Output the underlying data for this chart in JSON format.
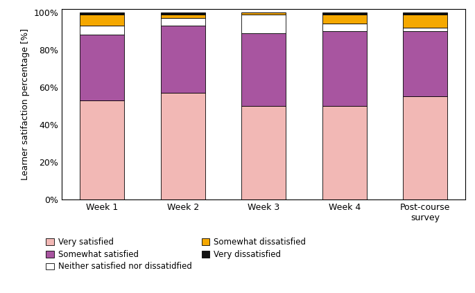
{
  "categories": [
    "Week 1",
    "Week 2",
    "Week 3",
    "Week 4",
    "Post-course\nsurvey"
  ],
  "series": {
    "Very satisfied": [
      53,
      57,
      50,
      50,
      55
    ],
    "Somewhat satisfied": [
      35,
      36,
      39,
      40,
      35
    ],
    "Neither satisfied nor dissatidfied": [
      5,
      4,
      10,
      4,
      2
    ],
    "Somewhat dissatisfied": [
      6,
      2,
      1,
      5,
      7
    ],
    "Very dissatisfied": [
      1,
      1,
      0,
      1,
      1
    ]
  },
  "colors": {
    "Very satisfied": "#F2B8B5",
    "Somewhat satisfied": "#A855A0",
    "Neither satisfied nor dissatidfied": "#FFFFFF",
    "Somewhat dissatisfied": "#F5A800",
    "Very dissatisfied": "#111111"
  },
  "ylabel": "Learner satifaction percentage [%]",
  "yticks": [
    0,
    20,
    40,
    60,
    80,
    100
  ],
  "ytick_labels": [
    "0%",
    "20%",
    "40%",
    "60%",
    "80%",
    "100%"
  ],
  "legend_order": [
    "Very satisfied",
    "Somewhat satisfied",
    "Neither satisfied nor dissatidfied",
    "Somewhat dissatisfied",
    "Very dissatisfied"
  ],
  "legend_cols_row1": [
    "Very satisfied",
    "Somewhat satisfied"
  ],
  "legend_cols_row2": [
    "Neither satisfied nor dissatidfied",
    "Somewhat dissatisfied"
  ],
  "legend_cols_row3": [
    "Very dissatisfied"
  ],
  "bar_width": 0.55,
  "bar_edge_color": "#000000",
  "bar_edge_width": 0.6,
  "fig_width": 6.85,
  "fig_height": 4.23,
  "dpi": 100
}
